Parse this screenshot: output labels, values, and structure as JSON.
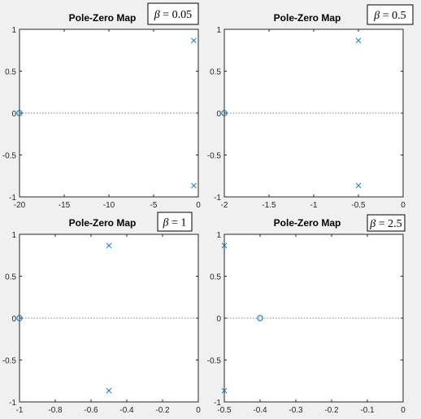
{
  "figure": {
    "background": "#f0f0f0"
  },
  "colors": {
    "marker": "#0072bd",
    "axis": "#262626",
    "plot_bg": "#ffffff",
    "axis_line": "#262626",
    "zero_line": "#808080"
  },
  "chart_data": [
    {
      "type": "scatter",
      "title": "Pole-Zero Map",
      "annotation": {
        "symbol": "β",
        "text": " = 0.05"
      },
      "xlim": [
        -20,
        0
      ],
      "ylim": [
        -1,
        1
      ],
      "xticks": [
        -20,
        -15,
        -10,
        -5,
        0
      ],
      "xtick_labels": [
        "-20",
        "-15",
        "-10",
        "-5",
        "0"
      ],
      "yticks": [
        -1,
        -0.5,
        0,
        0.5,
        1
      ],
      "ytick_labels": [
        "-1",
        "-0.5",
        "0",
        "0.5",
        "1"
      ],
      "zero_line": true,
      "poles": [
        {
          "x": -0.5,
          "y": 0.866
        },
        {
          "x": -0.5,
          "y": -0.866
        }
      ],
      "zeros": [
        {
          "x": -20,
          "y": 0
        }
      ]
    },
    {
      "type": "scatter",
      "title": "Pole-Zero Map",
      "annotation": {
        "symbol": "β",
        "text": " = 0.5"
      },
      "xlim": [
        -2,
        0
      ],
      "ylim": [
        -1,
        1
      ],
      "xticks": [
        -2,
        -1.5,
        -1,
        -0.5,
        0
      ],
      "xtick_labels": [
        "-2",
        "-1.5",
        "-1",
        "-0.5",
        "0"
      ],
      "yticks": [
        -1,
        -0.5,
        0,
        0.5,
        1
      ],
      "ytick_labels": [
        "-1",
        "-0.5",
        "0",
        "0.5",
        "1"
      ],
      "zero_line": true,
      "poles": [
        {
          "x": -0.5,
          "y": 0.866
        },
        {
          "x": -0.5,
          "y": -0.866
        }
      ],
      "zeros": [
        {
          "x": -2,
          "y": 0
        }
      ]
    },
    {
      "type": "scatter",
      "title": "Pole-Zero Map",
      "annotation": {
        "symbol": "β",
        "text": " = 1"
      },
      "xlim": [
        -1,
        0
      ],
      "ylim": [
        -1,
        1
      ],
      "xticks": [
        -1,
        -0.8,
        -0.6,
        -0.4,
        -0.2,
        0
      ],
      "xtick_labels": [
        "-1",
        "-0.8",
        "-0.6",
        "-0.4",
        "-0.2",
        "0"
      ],
      "yticks": [
        -1,
        -0.5,
        0,
        0.5,
        1
      ],
      "ytick_labels": [
        "-1",
        "-0.5",
        "0",
        "0.5",
        "1"
      ],
      "zero_line": true,
      "poles": [
        {
          "x": -0.5,
          "y": 0.866
        },
        {
          "x": -0.5,
          "y": -0.866
        }
      ],
      "zeros": [
        {
          "x": -1,
          "y": 0
        }
      ]
    },
    {
      "type": "scatter",
      "title": "Pole-Zero Map",
      "annotation": {
        "symbol": "β",
        "text": " = 2.5"
      },
      "xlim": [
        -0.5,
        0
      ],
      "ylim": [
        -1,
        1
      ],
      "xticks": [
        -0.5,
        -0.4,
        -0.3,
        -0.2,
        -0.1,
        0
      ],
      "xtick_labels": [
        "-0.5",
        "-0.4",
        "-0.3",
        "-0.2",
        "-0.1",
        "0"
      ],
      "yticks": [
        -1,
        -0.5,
        0,
        0.5,
        1
      ],
      "ytick_labels": [
        "-1",
        "-0.5",
        "0",
        "0.5",
        "1"
      ],
      "zero_line": true,
      "poles": [
        {
          "x": -0.5,
          "y": 0.866
        },
        {
          "x": -0.5,
          "y": -0.866
        }
      ],
      "zeros": [
        {
          "x": -0.4,
          "y": 0
        }
      ]
    }
  ]
}
